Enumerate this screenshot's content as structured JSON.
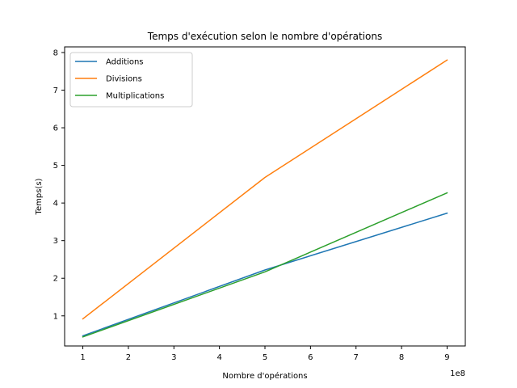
{
  "chart_data": {
    "type": "line",
    "title": "Temps d'exécution selon le nombre d'opérations",
    "xlabel": "Nombre d'opérations",
    "ylabel": "Temps(s)",
    "x_offset_label": "1e8",
    "x": [
      1,
      5,
      9
    ],
    "xlim": [
      0.6,
      9.4
    ],
    "ylim": [
      0.2,
      8.15
    ],
    "xticks": [
      1,
      2,
      3,
      4,
      5,
      6,
      7,
      8,
      9
    ],
    "yticks": [
      1,
      2,
      3,
      4,
      5,
      6,
      7,
      8
    ],
    "legend_position": "upper-left",
    "grid": false,
    "series": [
      {
        "name": "Additions",
        "color": "#1f77b4",
        "values": [
          0.47,
          2.22,
          3.73
        ]
      },
      {
        "name": "Divisions",
        "color": "#ff7f0e",
        "values": [
          0.92,
          4.68,
          7.8
        ]
      },
      {
        "name": "Multiplications",
        "color": "#2ca02c",
        "values": [
          0.44,
          2.17,
          4.27
        ]
      }
    ]
  }
}
